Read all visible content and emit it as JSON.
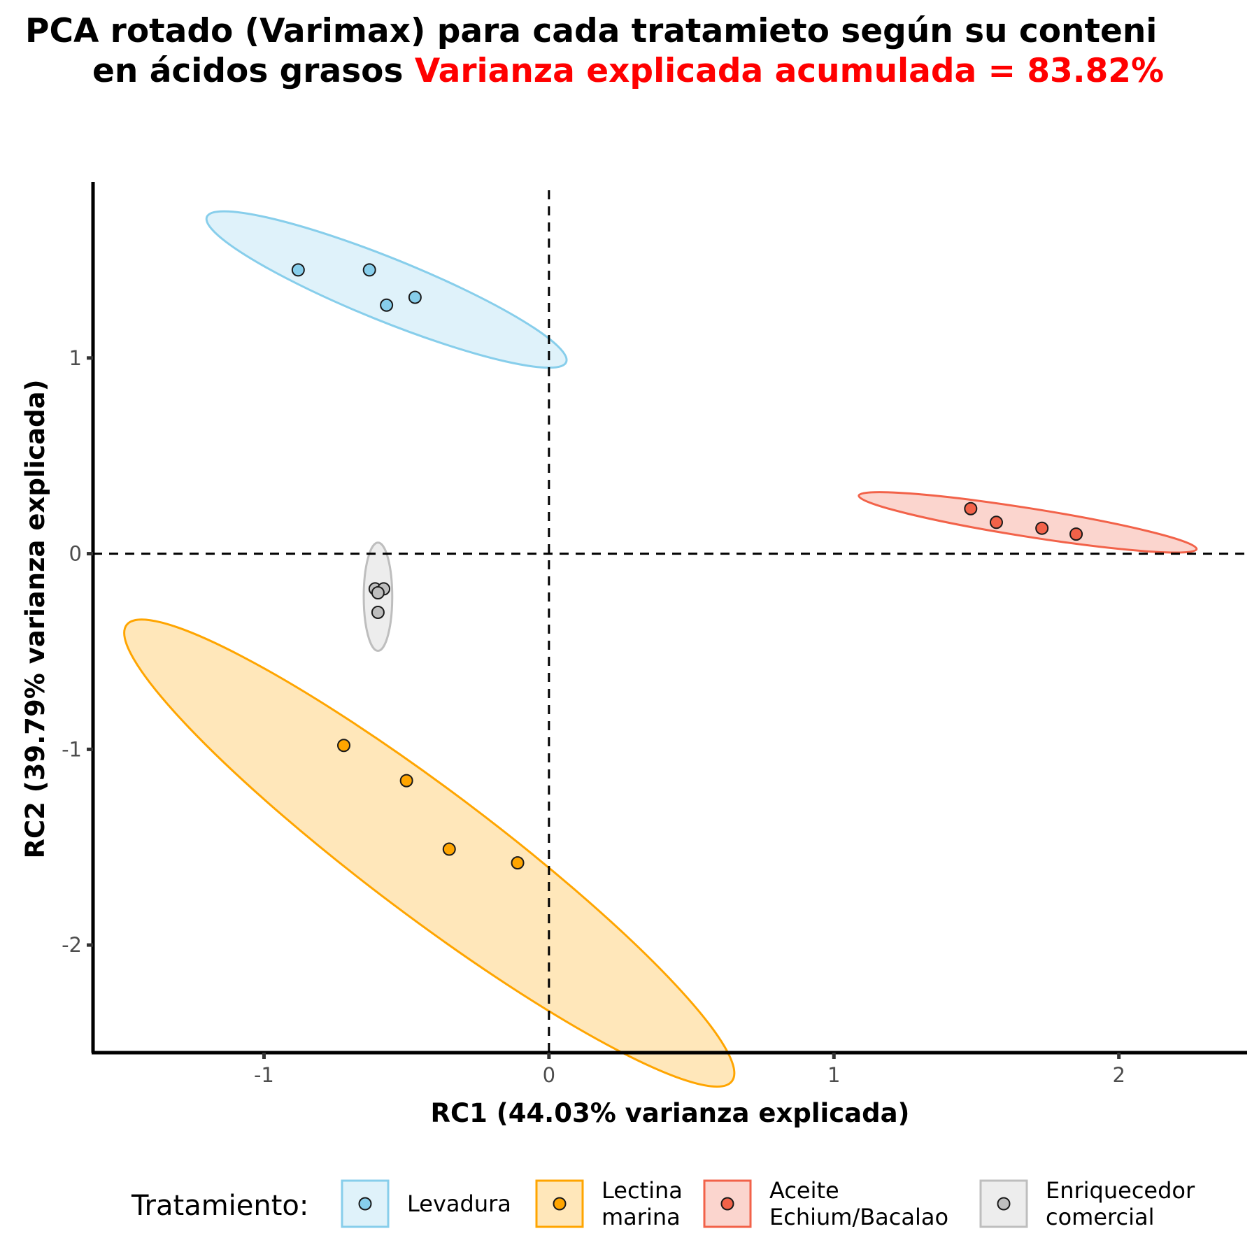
{
  "chart_data": {
    "type": "scatter",
    "title": {
      "line1": "PCA rotado (Varimax) para cada tratamieto según su conteni",
      "line2_black": "en ácidos grasos ",
      "line2_red": "Varianza explicada acumulada = 83.82%"
    },
    "xlabel": "RC1 (44.03% varianza explicada)",
    "ylabel": "RC2 (39.79% varianza explicada)",
    "xlim": [
      -1.6,
      2.45
    ],
    "ylim": [
      -2.55,
      1.9
    ],
    "x_ticks": [
      {
        "value": -1,
        "label": "-1"
      },
      {
        "value": 0,
        "label": "0"
      },
      {
        "value": 1,
        "label": "1"
      },
      {
        "value": 2,
        "label": "2"
      }
    ],
    "y_ticks": [
      {
        "value": 1,
        "label": "1"
      },
      {
        "value": 0,
        "label": "0"
      },
      {
        "value": -1,
        "label": "-1"
      },
      {
        "value": -2,
        "label": "-2"
      }
    ],
    "reference_lines": {
      "x": 0,
      "y": 0,
      "style": "dashed"
    },
    "grid": false,
    "legend": {
      "title": "Tratamiento:",
      "placement": "bottom"
    },
    "series": [
      {
        "name": [
          "Levadura"
        ],
        "color": "#87CEEB",
        "points": [
          [
            -0.88,
            1.45
          ],
          [
            -0.63,
            1.45
          ],
          [
            -0.57,
            1.27
          ],
          [
            -0.47,
            1.31
          ]
        ],
        "ellipse": {
          "cx": -0.57,
          "cy": 1.35,
          "rx": 0.68,
          "ry": 0.11,
          "angle_deg": -22
        }
      },
      {
        "name": [
          "Lectina",
          "marina"
        ],
        "color": "#FFA500",
        "points": [
          [
            -0.72,
            -0.98
          ],
          [
            -0.5,
            -1.16
          ],
          [
            -0.35,
            -1.51
          ],
          [
            -0.11,
            -1.58
          ]
        ],
        "ellipse": {
          "cx": -0.42,
          "cy": -1.53,
          "rx": 1.33,
          "ry": 0.22,
          "angle_deg": -37
        }
      },
      {
        "name": [
          "Aceite",
          "Echium/Bacalao"
        ],
        "color": "#F26249",
        "points": [
          [
            1.48,
            0.23
          ],
          [
            1.57,
            0.16
          ],
          [
            1.73,
            0.13
          ],
          [
            1.85,
            0.1
          ]
        ],
        "ellipse": {
          "cx": 1.68,
          "cy": 0.16,
          "rx": 0.6,
          "ry": 0.05,
          "angle_deg": -9
        }
      },
      {
        "name": [
          "Enriquecedor",
          "comercial"
        ],
        "color": "#BEBEBE",
        "points": [
          [
            -0.61,
            -0.18
          ],
          [
            -0.58,
            -0.18
          ],
          [
            -0.6,
            -0.2
          ],
          [
            -0.6,
            -0.3
          ]
        ],
        "ellipse": {
          "cx": -0.6,
          "cy": -0.22,
          "rx": 0.05,
          "ry": 0.19,
          "angle_deg": 0
        }
      }
    ]
  }
}
